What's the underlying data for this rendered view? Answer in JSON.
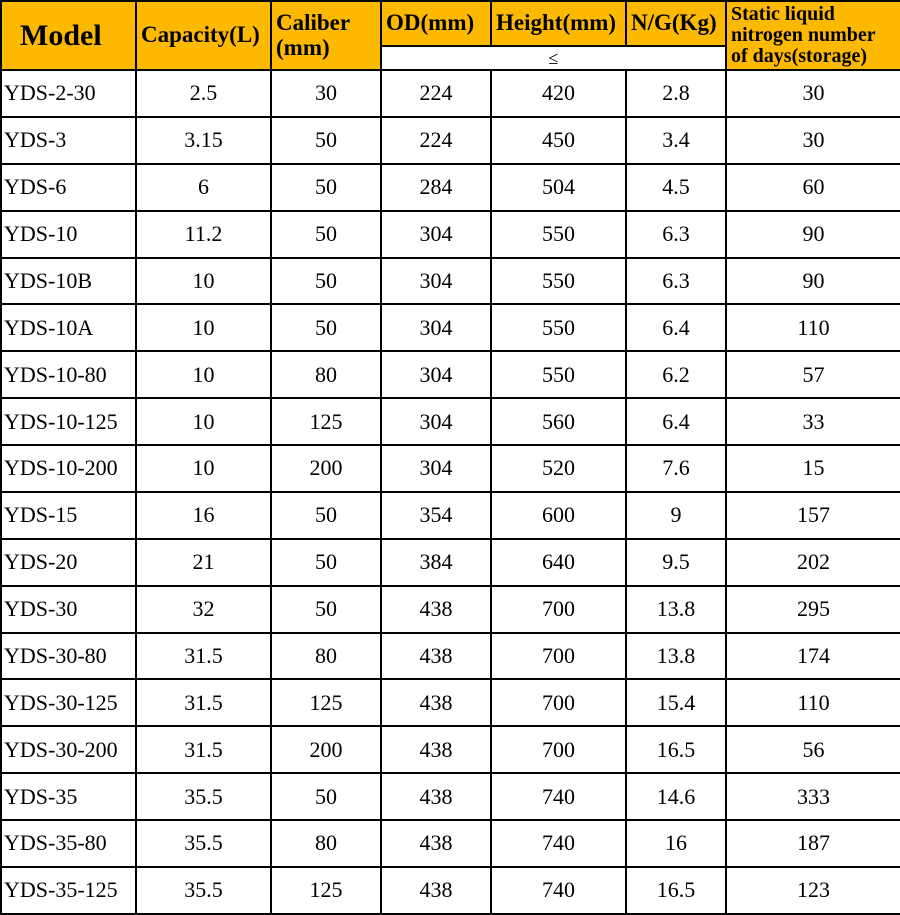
{
  "style": {
    "header_bg": "#fdb900",
    "header_fg": "#000000",
    "border_color": "#000000",
    "row_bg": "#ffffff",
    "font_header_pt": 23,
    "font_model_header_pt": 30,
    "font_cell_pt": 22,
    "subheader_symbol": "≤"
  },
  "table": {
    "columns": [
      "Model",
      "Capacity(L)",
      "Caliber (mm)",
      "OD(mm)",
      "Height(mm)",
      "N/G(Kg)",
      "Static liquid nitrogen number of days(storage)"
    ],
    "span_group_cols": [
      3,
      4,
      5
    ],
    "rows": [
      [
        "YDS-2-30",
        "2.5",
        "30",
        "224",
        "420",
        "2.8",
        "30"
      ],
      [
        "YDS-3",
        "3.15",
        "50",
        "224",
        "450",
        "3.4",
        "30"
      ],
      [
        "YDS-6",
        "6",
        "50",
        "284",
        "504",
        "4.5",
        "60"
      ],
      [
        "YDS-10",
        "11.2",
        "50",
        "304",
        "550",
        "6.3",
        "90"
      ],
      [
        "YDS-10B",
        "10",
        "50",
        "304",
        "550",
        "6.3",
        "90"
      ],
      [
        "YDS-10A",
        "10",
        "50",
        "304",
        "550",
        "6.4",
        "110"
      ],
      [
        "YDS-10-80",
        "10",
        "80",
        "304",
        "550",
        "6.2",
        "57"
      ],
      [
        "YDS-10-125",
        "10",
        "125",
        "304",
        "560",
        "6.4",
        "33"
      ],
      [
        "YDS-10-200",
        "10",
        "200",
        "304",
        "520",
        "7.6",
        "15"
      ],
      [
        "YDS-15",
        "16",
        "50",
        "354",
        "600",
        "9",
        "157"
      ],
      [
        "YDS-20",
        "21",
        "50",
        "384",
        "640",
        "9.5",
        "202"
      ],
      [
        "YDS-30",
        "32",
        "50",
        "438",
        "700",
        "13.8",
        "295"
      ],
      [
        "YDS-30-80",
        "31.5",
        "80",
        "438",
        "700",
        "13.8",
        "174"
      ],
      [
        "YDS-30-125",
        "31.5",
        "125",
        "438",
        "700",
        "15.4",
        "110"
      ],
      [
        "YDS-30-200",
        "31.5",
        "200",
        "438",
        "700",
        "16.5",
        "56"
      ],
      [
        "YDS-35",
        "35.5",
        "50",
        "438",
        "740",
        "14.6",
        "333"
      ],
      [
        "YDS-35-80",
        "35.5",
        "80",
        "438",
        "740",
        "16",
        "187"
      ],
      [
        "YDS-35-125",
        "35.5",
        "125",
        "438",
        "740",
        "16.5",
        "123"
      ]
    ]
  }
}
